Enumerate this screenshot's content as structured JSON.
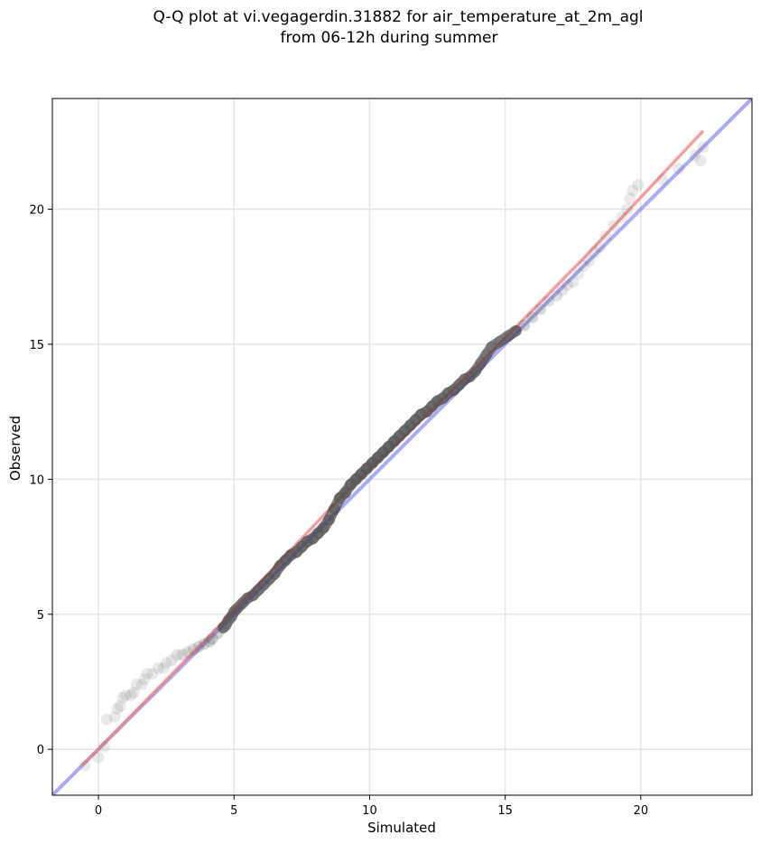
{
  "chart_data": {
    "type": "scatter",
    "title": [
      "Q-Q plot at vi.vegagerdin.31882 for air_temperature_at_2m_agl",
      "from 06-12h during summer"
    ],
    "xlabel": "Simulated",
    "ylabel": "Observed",
    "xlim": [
      -1.7,
      24.1
    ],
    "ylim": [
      -1.7,
      24.1
    ],
    "xticks": [
      0,
      5,
      10,
      15,
      20
    ],
    "yticks": [
      0,
      5,
      10,
      15,
      20
    ],
    "xtick_labels": [
      "0",
      "5",
      "10",
      "15",
      "20"
    ],
    "ytick_labels": [
      "0",
      "5",
      "10",
      "15",
      "20"
    ],
    "grid": true,
    "colors": {
      "points": "#555555",
      "fit_line": "#f08080",
      "identity_line": "#8080f0",
      "grid": "#e6e6e6",
      "dense_core": "#222222"
    },
    "series": [
      {
        "kind": "scatter",
        "points": [
          [
            -0.5,
            -0.6
          ],
          [
            0.0,
            -0.3
          ],
          [
            0.2,
            0.1
          ],
          [
            0.3,
            1.1
          ],
          [
            0.6,
            1.2
          ],
          [
            0.7,
            1.5
          ],
          [
            0.8,
            1.6
          ],
          [
            0.9,
            1.9
          ],
          [
            1.0,
            2.0
          ],
          [
            1.2,
            2.0
          ],
          [
            1.3,
            2.1
          ],
          [
            1.4,
            2.4
          ],
          [
            1.6,
            2.4
          ],
          [
            1.7,
            2.6
          ],
          [
            1.8,
            2.8
          ],
          [
            2.0,
            2.8
          ],
          [
            2.2,
            3.0
          ],
          [
            2.4,
            3.0
          ],
          [
            2.5,
            3.2
          ],
          [
            2.7,
            3.3
          ],
          [
            2.9,
            3.5
          ],
          [
            3.1,
            3.5
          ],
          [
            3.3,
            3.6
          ],
          [
            3.5,
            3.7
          ],
          [
            3.7,
            3.8
          ],
          [
            3.9,
            3.9
          ],
          [
            4.1,
            4.0
          ],
          [
            4.2,
            4.1
          ],
          [
            4.4,
            4.3
          ],
          [
            4.6,
            4.5
          ],
          [
            4.7,
            4.6
          ],
          [
            4.8,
            4.8
          ],
          [
            4.9,
            4.9
          ],
          [
            5.0,
            5.1
          ],
          [
            5.1,
            5.2
          ],
          [
            5.3,
            5.4
          ],
          [
            5.5,
            5.6
          ],
          [
            5.7,
            5.7
          ],
          [
            5.9,
            5.9
          ],
          [
            6.1,
            6.1
          ],
          [
            6.3,
            6.3
          ],
          [
            6.5,
            6.5
          ],
          [
            6.7,
            6.8
          ],
          [
            6.9,
            7.0
          ],
          [
            7.1,
            7.2
          ],
          [
            7.3,
            7.3
          ],
          [
            7.5,
            7.5
          ],
          [
            7.7,
            7.7
          ],
          [
            7.9,
            7.8
          ],
          [
            8.1,
            8.0
          ],
          [
            8.3,
            8.2
          ],
          [
            8.5,
            8.5
          ],
          [
            8.7,
            8.9
          ],
          [
            8.9,
            9.3
          ],
          [
            9.1,
            9.5
          ],
          [
            9.3,
            9.8
          ],
          [
            9.5,
            10.0
          ],
          [
            9.7,
            10.2
          ],
          [
            9.9,
            10.4
          ],
          [
            10.1,
            10.6
          ],
          [
            10.3,
            10.8
          ],
          [
            10.5,
            11.0
          ],
          [
            10.7,
            11.2
          ],
          [
            10.9,
            11.4
          ],
          [
            11.1,
            11.6
          ],
          [
            11.3,
            11.8
          ],
          [
            11.5,
            12.0
          ],
          [
            11.7,
            12.2
          ],
          [
            11.9,
            12.4
          ],
          [
            12.1,
            12.5
          ],
          [
            12.3,
            12.7
          ],
          [
            12.5,
            12.9
          ],
          [
            12.7,
            13.0
          ],
          [
            12.9,
            13.2
          ],
          [
            13.1,
            13.3
          ],
          [
            13.3,
            13.5
          ],
          [
            13.5,
            13.7
          ],
          [
            13.7,
            13.8
          ],
          [
            13.9,
            14.0
          ],
          [
            14.1,
            14.3
          ],
          [
            14.3,
            14.6
          ],
          [
            14.5,
            14.9
          ],
          [
            14.8,
            15.1
          ],
          [
            15.1,
            15.3
          ],
          [
            15.4,
            15.5
          ],
          [
            15.7,
            15.7
          ],
          [
            16.0,
            16.0
          ],
          [
            16.3,
            16.3
          ],
          [
            16.6,
            16.6
          ],
          [
            16.9,
            16.8
          ],
          [
            17.1,
            17.0
          ],
          [
            17.3,
            17.2
          ],
          [
            17.5,
            17.3
          ],
          [
            17.7,
            17.6
          ],
          [
            17.9,
            17.9
          ],
          [
            18.1,
            18.1
          ],
          [
            18.3,
            18.4
          ],
          [
            18.5,
            18.6
          ],
          [
            18.7,
            19.0
          ],
          [
            19.0,
            19.4
          ],
          [
            19.3,
            19.7
          ],
          [
            19.5,
            20.0
          ],
          [
            19.6,
            20.4
          ],
          [
            19.7,
            20.7
          ],
          [
            19.9,
            20.9
          ],
          [
            20.8,
            21.1
          ],
          [
            21.4,
            21.5
          ],
          [
            22.0,
            22.0
          ],
          [
            22.2,
            21.8
          ],
          [
            22.3,
            22.3
          ]
        ]
      },
      {
        "kind": "line",
        "name": "fit",
        "points": [
          [
            -0.6,
            -0.6
          ],
          [
            4.0,
            4.1
          ],
          [
            9.0,
            9.4
          ],
          [
            14.0,
            14.2
          ],
          [
            18.0,
            18.3
          ],
          [
            22.3,
            22.9
          ]
        ]
      },
      {
        "kind": "line",
        "name": "identity",
        "points": [
          [
            -1.7,
            -1.7
          ],
          [
            24.1,
            24.1
          ]
        ]
      }
    ]
  }
}
